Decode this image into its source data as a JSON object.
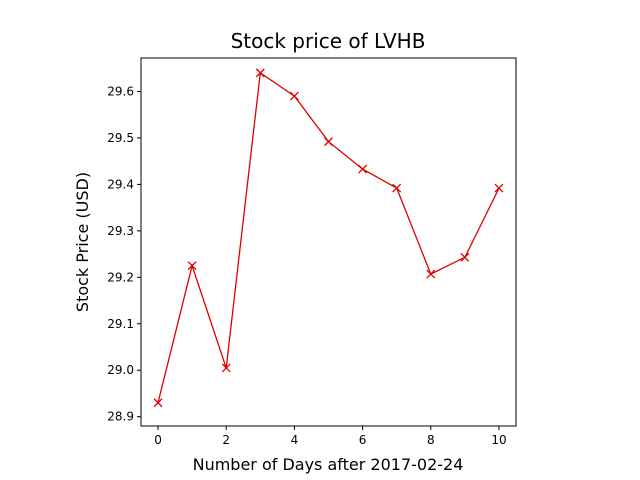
{
  "chart_data": {
    "type": "line",
    "title": "Stock price of LVHB",
    "xlabel": "Number of Days after 2017-02-24",
    "ylabel": "Stock Price (USD)",
    "x": [
      0,
      1,
      2,
      3,
      4,
      5,
      6,
      7,
      8,
      9,
      10
    ],
    "xlim": [
      -0.5,
      10.5
    ],
    "ylim": [
      28.88,
      29.672
    ],
    "x_ticks": [
      "0",
      "2",
      "4",
      "6",
      "8",
      "10"
    ],
    "y_ticks": [
      "28.9",
      "29.0",
      "29.1",
      "29.2",
      "29.3",
      "29.4",
      "29.5",
      "29.6"
    ],
    "grid": false,
    "series": [
      {
        "values": [
          28.93,
          29.225,
          29.005,
          29.64,
          29.59,
          29.492,
          29.433,
          29.392,
          29.207,
          29.243,
          29.392
        ],
        "color": "#dd0000",
        "marker": "x"
      }
    ]
  }
}
